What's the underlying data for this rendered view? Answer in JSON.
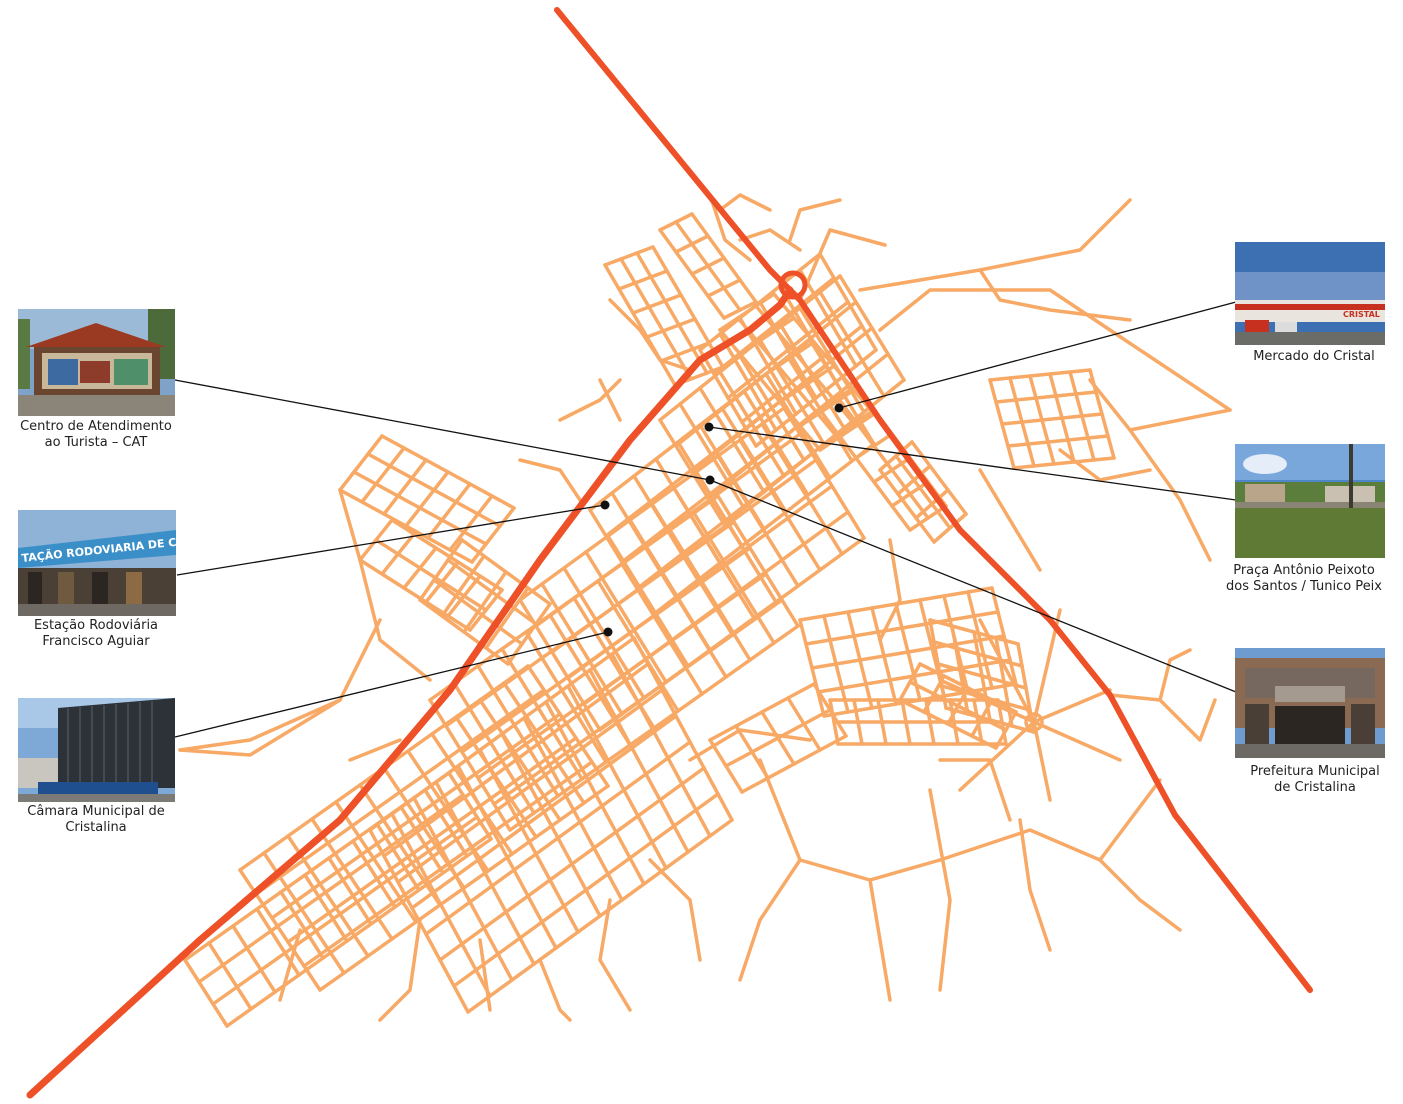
{
  "map": {
    "highway_color": "#ee5027",
    "street_color": "#f7a965",
    "leader_color": "#111111"
  },
  "places": [
    {
      "id": "cat",
      "line1": "Centro de Atendimento",
      "line2": "ao Turista – CAT",
      "photo_text": ""
    },
    {
      "id": "rodoviaria",
      "line1": "Estação Rodoviária",
      "line2": "Francisco Aguiar",
      "photo_text": "TAÇÃO RODOVIARIA DE CRISTA"
    },
    {
      "id": "camara",
      "line1": "Câmara Municipal de",
      "line2": "Cristalina",
      "photo_text": ""
    },
    {
      "id": "mercado",
      "line1": "Mercado do Cristal",
      "line2": "",
      "photo_text": "CRISTAL"
    },
    {
      "id": "praca",
      "line1": "Praça Antônio Peixoto",
      "line2": "dos Santos / Tunico Peix",
      "photo_text": ""
    },
    {
      "id": "prefeitura",
      "line1": "Prefeitura Municipal",
      "line2": "de Cristalina",
      "photo_text": ""
    }
  ]
}
